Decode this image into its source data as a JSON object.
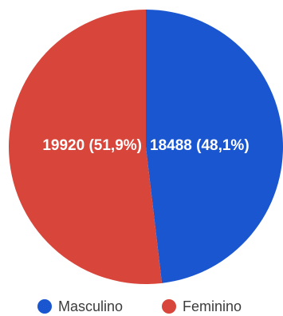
{
  "chart_data": {
    "type": "pie",
    "slices": [
      {
        "name": "Masculino",
        "value": 18488,
        "label": "18488 (48,1%)",
        "color": "#1a56cf"
      },
      {
        "name": "Feminino",
        "value": 19920,
        "label": "19920 (51,9%)",
        "color": "#d8463b"
      }
    ],
    "legend": {
      "placement": "bottom",
      "entries": [
        "Masculino",
        "Feminino"
      ]
    },
    "start_angle": "top, clockwise"
  }
}
